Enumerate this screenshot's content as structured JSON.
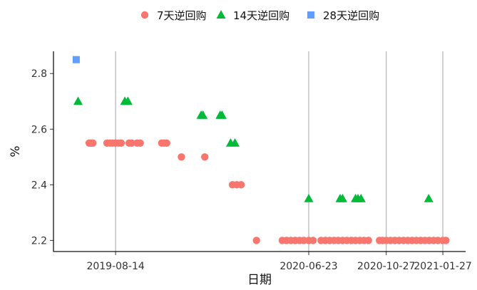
{
  "chart_data": {
    "type": "scatter",
    "title": "",
    "xlabel": "日期",
    "ylabel": "%",
    "ylim": [
      2.16,
      2.88
    ],
    "xlim": [
      "2019-05-05",
      "2021-03-05"
    ],
    "grid": "vertical lines at x ticks",
    "legend_position": "top",
    "x_ticks": [
      "2019-08-14",
      "2020-06-23",
      "2020-10-27",
      "2021-01-27"
    ],
    "y_ticks": [
      2.2,
      2.4,
      2.6,
      2.8
    ],
    "y_tick_labels": [
      "2.2",
      "2.4",
      "2.6",
      "2.8"
    ],
    "series": [
      {
        "name": "7天逆回购",
        "marker": "circle",
        "color": "#F8766D",
        "points": [
          {
            "x": "2019-07-02",
            "y": 2.55
          },
          {
            "x": "2019-07-05",
            "y": 2.55
          },
          {
            "x": "2019-07-08",
            "y": 2.55
          },
          {
            "x": "2019-07-31",
            "y": 2.55
          },
          {
            "x": "2019-08-05",
            "y": 2.55
          },
          {
            "x": "2019-08-09",
            "y": 2.55
          },
          {
            "x": "2019-08-14",
            "y": 2.55
          },
          {
            "x": "2019-08-19",
            "y": 2.55
          },
          {
            "x": "2019-08-23",
            "y": 2.55
          },
          {
            "x": "2019-09-05",
            "y": 2.55
          },
          {
            "x": "2019-09-09",
            "y": 2.55
          },
          {
            "x": "2019-09-18",
            "y": 2.55
          },
          {
            "x": "2019-09-23",
            "y": 2.55
          },
          {
            "x": "2019-10-28",
            "y": 2.55
          },
          {
            "x": "2019-11-01",
            "y": 2.55
          },
          {
            "x": "2019-11-05",
            "y": 2.55
          },
          {
            "x": "2019-11-29",
            "y": 2.5
          },
          {
            "x": "2020-01-06",
            "y": 2.5
          },
          {
            "x": "2020-02-20",
            "y": 2.4
          },
          {
            "x": "2020-02-27",
            "y": 2.4
          },
          {
            "x": "2020-03-05",
            "y": 2.4
          },
          {
            "x": "2020-03-30",
            "y": 2.2
          },
          {
            "x": "2020-05-11",
            "y": 2.2
          },
          {
            "x": "2020-05-18",
            "y": 2.2
          },
          {
            "x": "2020-05-25",
            "y": 2.2
          },
          {
            "x": "2020-06-01",
            "y": 2.2
          },
          {
            "x": "2020-06-08",
            "y": 2.2
          },
          {
            "x": "2020-06-15",
            "y": 2.2
          },
          {
            "x": "2020-06-23",
            "y": 2.2
          },
          {
            "x": "2020-06-30",
            "y": 2.2
          },
          {
            "x": "2020-07-13",
            "y": 2.2
          },
          {
            "x": "2020-07-20",
            "y": 2.2
          },
          {
            "x": "2020-07-27",
            "y": 2.2
          },
          {
            "x": "2020-08-03",
            "y": 2.2
          },
          {
            "x": "2020-08-10",
            "y": 2.2
          },
          {
            "x": "2020-08-17",
            "y": 2.2
          },
          {
            "x": "2020-08-24",
            "y": 2.2
          },
          {
            "x": "2020-08-31",
            "y": 2.2
          },
          {
            "x": "2020-09-07",
            "y": 2.2
          },
          {
            "x": "2020-09-14",
            "y": 2.2
          },
          {
            "x": "2020-09-21",
            "y": 2.2
          },
          {
            "x": "2020-09-28",
            "y": 2.2
          },
          {
            "x": "2020-10-16",
            "y": 2.2
          },
          {
            "x": "2020-10-21",
            "y": 2.2
          },
          {
            "x": "2020-10-27",
            "y": 2.2
          },
          {
            "x": "2020-11-03",
            "y": 2.2
          },
          {
            "x": "2020-11-10",
            "y": 2.2
          },
          {
            "x": "2020-11-17",
            "y": 2.2
          },
          {
            "x": "2020-11-24",
            "y": 2.2
          },
          {
            "x": "2020-12-01",
            "y": 2.2
          },
          {
            "x": "2020-12-08",
            "y": 2.2
          },
          {
            "x": "2020-12-15",
            "y": 2.2
          },
          {
            "x": "2020-12-22",
            "y": 2.2
          },
          {
            "x": "2020-12-29",
            "y": 2.2
          },
          {
            "x": "2021-01-05",
            "y": 2.2
          },
          {
            "x": "2021-01-12",
            "y": 2.2
          },
          {
            "x": "2021-01-19",
            "y": 2.2
          },
          {
            "x": "2021-01-27",
            "y": 2.2
          },
          {
            "x": "2021-02-01",
            "y": 2.2
          }
        ]
      },
      {
        "name": "14天逆回购",
        "marker": "triangle",
        "color": "#00BA38",
        "points": [
          {
            "x": "2019-06-14",
            "y": 2.7
          },
          {
            "x": "2019-08-29",
            "y": 2.7
          },
          {
            "x": "2019-09-03",
            "y": 2.7
          },
          {
            "x": "2019-12-31",
            "y": 2.65
          },
          {
            "x": "2020-01-03",
            "y": 2.65
          },
          {
            "x": "2020-01-31",
            "y": 2.65
          },
          {
            "x": "2020-02-03",
            "y": 2.65
          },
          {
            "x": "2020-02-17",
            "y": 2.55
          },
          {
            "x": "2020-02-24",
            "y": 2.55
          },
          {
            "x": "2020-06-23",
            "y": 2.35
          },
          {
            "x": "2020-08-13",
            "y": 2.35
          },
          {
            "x": "2020-08-17",
            "y": 2.35
          },
          {
            "x": "2020-09-07",
            "y": 2.35
          },
          {
            "x": "2020-09-11",
            "y": 2.35
          },
          {
            "x": "2020-09-16",
            "y": 2.35
          },
          {
            "x": "2021-01-04",
            "y": 2.35
          }
        ]
      },
      {
        "name": "28天逆回购",
        "marker": "square",
        "color": "#619CFF",
        "points": [
          {
            "x": "2019-06-11",
            "y": 2.85
          }
        ]
      }
    ]
  }
}
